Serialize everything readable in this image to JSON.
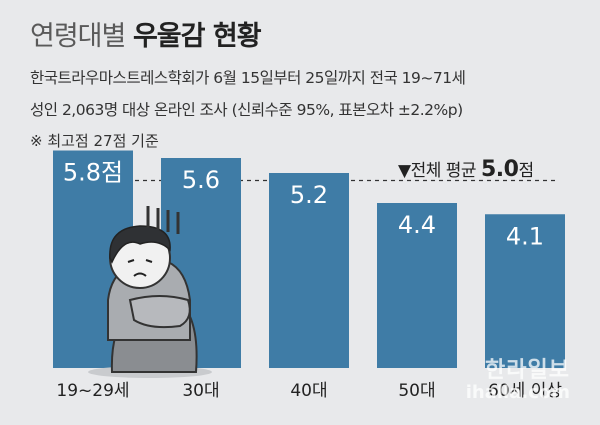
{
  "title": {
    "part1": "연령대별",
    "part2": "우울감 현황"
  },
  "subtitle": {
    "line1": "한국트라우마스트레스학회가 6월 15일부터 25일까지 전국 19~71세",
    "line2": "성인 2,063명 대상 온라인 조사 (신뢰수준 95%, 표본오차 ±2.2%p)"
  },
  "note": "※ 최고점 27점 기준",
  "average": {
    "prefix": "▼전체 평균",
    "value": "5.0",
    "unit": "점"
  },
  "watermark": {
    "brand": "한라일보",
    "domain": "ihalla.com"
  },
  "colors": {
    "bar": "#3f7ca6",
    "background": "#e8e9eb",
    "text": "#333333"
  },
  "chart_data": {
    "type": "bar",
    "categories": [
      "19~29세",
      "30대",
      "40대",
      "50대",
      "60세 이상"
    ],
    "values": [
      5.8,
      5.6,
      5.2,
      4.4,
      4.1
    ],
    "value_labels": [
      "5.8점",
      "5.6",
      "5.2",
      "4.4",
      "4.1"
    ],
    "average": 5.0,
    "ylim": [
      0,
      27
    ],
    "grid": false,
    "legend": "none"
  }
}
